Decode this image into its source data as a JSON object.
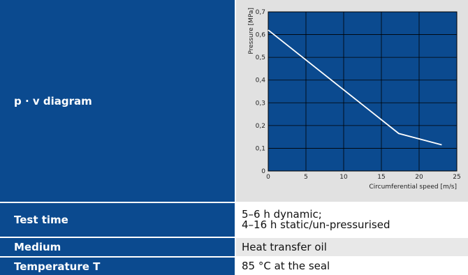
{
  "rows": {
    "pv": {
      "label": "p · v diagram"
    },
    "test_time": {
      "label": "Test time",
      "value_line1": "5–6 h dynamic;",
      "value_line2": "4–16 h static/un-pressurised"
    },
    "medium": {
      "label": "Medium",
      "value": "Heat transfer oil"
    },
    "temperature": {
      "label": "Temperature T",
      "value": "85 °C at the seal"
    }
  },
  "colors": {
    "label_bg": "#0b4a8f",
    "plot_bg": "#0b4a8f",
    "chart_area_bg": "#e1e1e1",
    "line": "#ffffff",
    "grid": "#000000"
  },
  "chart_data": {
    "type": "line",
    "xlabel": "Circumferential speed [m/s]",
    "ylabel": "Pressure [MPa]",
    "xlim": [
      0,
      25
    ],
    "ylim": [
      0,
      0.7
    ],
    "xticks": [
      0,
      5,
      10,
      15,
      20,
      25
    ],
    "yticks": [
      0,
      0.1,
      0.2,
      0.3,
      0.4,
      0.5,
      0.6,
      0.7
    ],
    "xtick_labels": [
      "0",
      "5",
      "10",
      "15",
      "20",
      "25"
    ],
    "ytick_labels": [
      "0",
      "0,1",
      "0,2",
      "0,3",
      "0,4",
      "0,5",
      "0,6",
      "0,7"
    ],
    "grid": true,
    "series": [
      {
        "x": [
          0,
          17.3,
          23
        ],
        "y": [
          0.62,
          0.165,
          0.115
        ]
      }
    ]
  }
}
